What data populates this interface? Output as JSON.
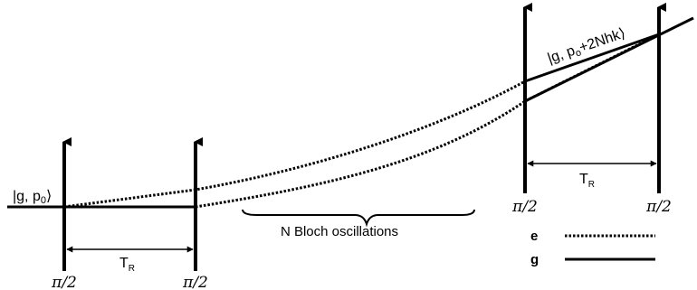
{
  "state_left": {
    "pre": "|g, p",
    "sub": "0",
    "post": "⟩"
  },
  "state_right": {
    "pre": "|g, p",
    "sub": "o",
    "post": "+2Nhk⟩"
  },
  "pulse_labels": [
    "π/2",
    "π/2",
    "π/2",
    "π/2"
  ],
  "tr_left": {
    "main": "T",
    "sub": "R"
  },
  "tr_right": {
    "main": "T",
    "sub": "R"
  },
  "bloch_label": "N Bloch oscillations",
  "legend": [
    {
      "label": "e",
      "style": "dotted"
    },
    {
      "label": "g",
      "style": "solid"
    }
  ]
}
